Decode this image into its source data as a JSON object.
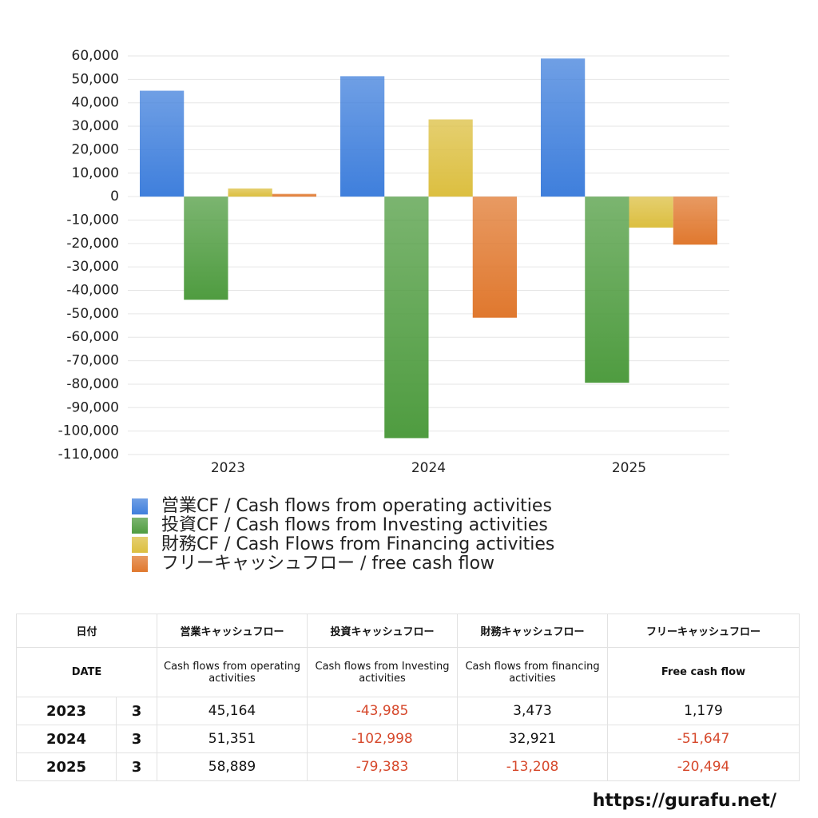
{
  "chart_data": {
    "type": "bar",
    "categories": [
      "2023",
      "2024",
      "2025"
    ],
    "series": [
      {
        "name": "営業CF / Cash flows from operating activities",
        "color": "#3f7fdc",
        "values": [
          45164,
          51351,
          58889
        ]
      },
      {
        "name": "投資CF / Cash flows from Investing activities",
        "color": "#4f9c40",
        "values": [
          -43985,
          -102998,
          -79383
        ]
      },
      {
        "name": "財務CF / Cash Flows from Financing activities",
        "color": "#dcbf40",
        "values": [
          3473,
          32921,
          -13208
        ]
      },
      {
        "name": "フリーキャッシュフロー / free cash flow",
        "color": "#e0782e",
        "values": [
          1179,
          -51647,
          -20494
        ]
      }
    ],
    "ylim": [
      -110000,
      60000
    ],
    "yticks": [
      {
        "value": 60000,
        "label": "60,000"
      },
      {
        "value": 50000,
        "label": "50,000"
      },
      {
        "value": 40000,
        "label": "40,000"
      },
      {
        "value": 30000,
        "label": "30,000"
      },
      {
        "value": 20000,
        "label": "20,000"
      },
      {
        "value": 10000,
        "label": "10,000"
      },
      0,
      {
        "value": -10000,
        "label": "-10,000"
      },
      {
        "value": -20000,
        "label": "-20,000"
      },
      {
        "value": -30000,
        "label": "-30,000"
      },
      {
        "value": -40000,
        "label": "-40,000"
      },
      {
        "value": -50000,
        "label": "-50,000"
      },
      {
        "value": -60000,
        "label": "-60,000"
      },
      {
        "value": -70000,
        "label": "-70,000"
      },
      {
        "value": -80000,
        "label": "-80,000"
      },
      {
        "value": -90000,
        "label": "-90,000"
      },
      {
        "value": -100000,
        "label": "-100,000"
      },
      {
        "value": -110000,
        "label": "-110,000"
      }
    ],
    "grid": true,
    "legend": "bottom"
  },
  "table": {
    "header": {
      "date": "日付",
      "columns": [
        "営業キャッシュフロー",
        "投資キャッシュフロー",
        "財務キャッシュフロー",
        "フリーキャッシュフロー"
      ]
    },
    "subheader": {
      "date": "DATE",
      "columns": [
        "Cash flows from operating activities",
        "Cash flows from Investing activities",
        "Cash flows from financing activities",
        "Free cash flow"
      ]
    },
    "rows": [
      [
        "2023",
        "3",
        "45,164",
        "-43,985",
        "3,473",
        "1,179"
      ],
      [
        "2024",
        "3",
        "51,351",
        "-102,998",
        "32,921",
        "-51,647"
      ],
      [
        "2025",
        "3",
        "58,889",
        "-79,383",
        "-13,208",
        "-20,494"
      ]
    ]
  },
  "footer": {
    "url": "https://gurafu.net/"
  }
}
